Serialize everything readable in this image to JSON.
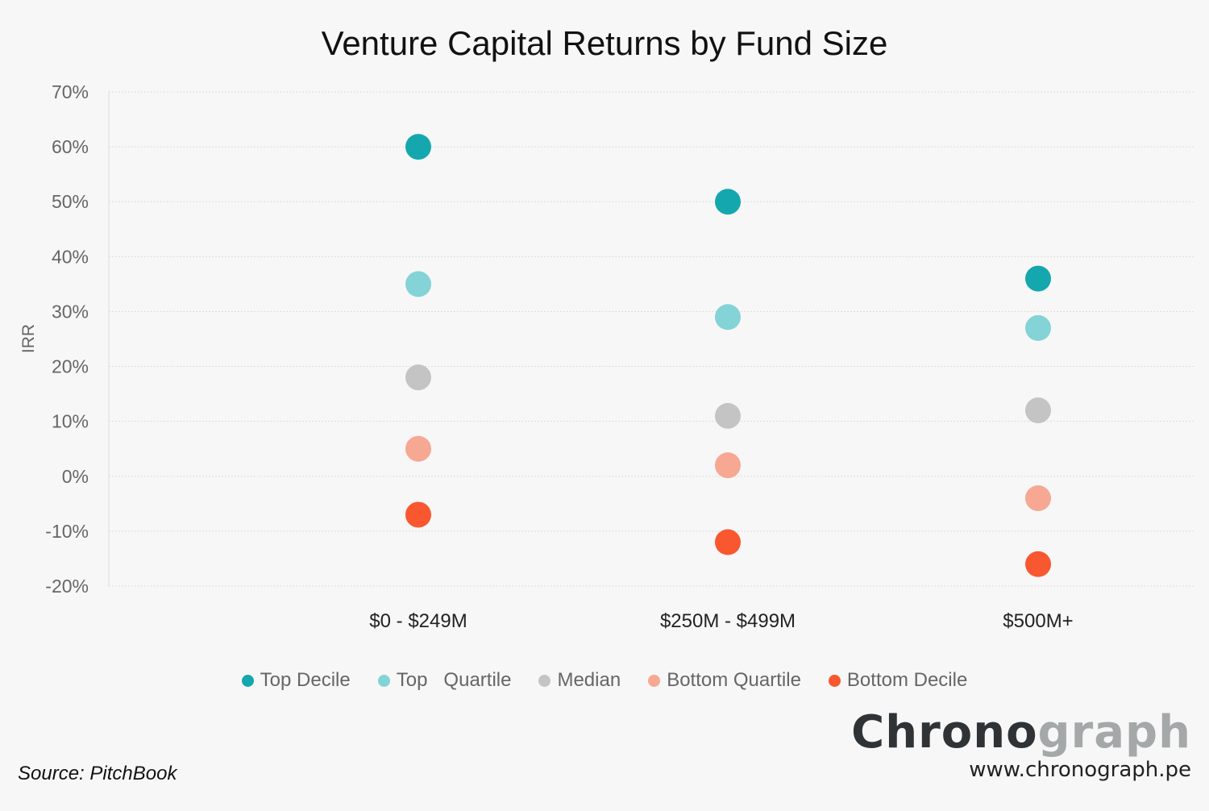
{
  "chart_data": {
    "type": "scatter",
    "title": "Venture Capital Returns by Fund Size",
    "ylabel": "IRR",
    "xlabel": "",
    "ylim": [
      -20,
      70
    ],
    "yticks": [
      "70%",
      "60%",
      "50%",
      "40%",
      "30%",
      "20%",
      "10%",
      "0%",
      "-10%",
      "-20%"
    ],
    "grid": true,
    "legend_position": "bottom",
    "categories": [
      "$0 - $249M",
      "$250M - $499M",
      "$500M+"
    ],
    "series": [
      {
        "name": "Top Decile",
        "color": "#14a7ae",
        "values": [
          60,
          50,
          36
        ]
      },
      {
        "name": "Top   Quartile",
        "color": "#84d3d6",
        "values": [
          35,
          29,
          27
        ]
      },
      {
        "name": "Median",
        "color": "#c4c4c4",
        "values": [
          18,
          11,
          12
        ]
      },
      {
        "name": "Bottom Quartile",
        "color": "#f6a893",
        "values": [
          5,
          2,
          -4
        ]
      },
      {
        "name": "Bottom Decile",
        "color": "#f9572f",
        "values": [
          -7,
          -12,
          -16
        ]
      }
    ]
  },
  "source": "Source: PitchBook",
  "logo": {
    "part1": "Chrono",
    "part2": "graph",
    "url": "www.chronograph.pe"
  }
}
